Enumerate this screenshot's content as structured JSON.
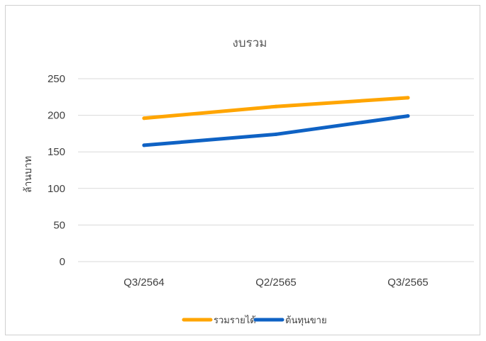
{
  "chart_data": {
    "type": "line",
    "title": "งบรวม",
    "ylabel": "ล้านบาท",
    "xlabel": "",
    "categories": [
      "Q3/2564",
      "Q2/2565",
      "Q3/2565"
    ],
    "ylim": [
      0,
      250
    ],
    "yticks": [
      0,
      50,
      100,
      150,
      200,
      250
    ],
    "grid": true,
    "legend_position": "bottom",
    "series": [
      {
        "name": "รวมรายได้",
        "color": "#FFA500",
        "values": [
          196,
          212,
          224
        ]
      },
      {
        "name": "ต้นทุนขาย",
        "color": "#0F62C4",
        "values": [
          159,
          174,
          199
        ]
      }
    ]
  }
}
